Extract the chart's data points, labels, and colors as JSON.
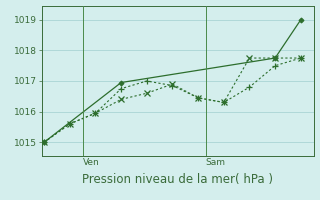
{
  "line1_x": [
    0,
    1,
    2,
    3,
    4,
    5,
    6,
    7,
    8,
    9,
    10
  ],
  "line1_y": [
    1015.0,
    1015.6,
    1015.95,
    1016.75,
    1017.0,
    1016.85,
    1016.45,
    1016.3,
    1016.8,
    1017.5,
    1017.75
  ],
  "line2_x": [
    0,
    1,
    2,
    3,
    4,
    5,
    6,
    7,
    8,
    9,
    10
  ],
  "line2_y": [
    1015.0,
    1015.6,
    1015.95,
    1016.4,
    1016.6,
    1016.9,
    1016.45,
    1016.3,
    1017.75,
    1017.75,
    1017.75
  ],
  "line3_x": [
    0,
    3,
    9,
    10
  ],
  "line3_y": [
    1015.0,
    1016.95,
    1017.75,
    1019.0
  ],
  "ylim": [
    1014.55,
    1019.45
  ],
  "yticks": [
    1015,
    1016,
    1017,
    1018,
    1019
  ],
  "xlim": [
    -0.1,
    10.5
  ],
  "ven_x": 1.5,
  "sam_x": 6.3,
  "n_grid_x": 10,
  "line_color": "#2d6e2d",
  "bg_color": "#d4eeed",
  "grid_color": "#aad4d4",
  "axis_color": "#3a6b3a",
  "xlabel": "Pression niveau de la mer( hPa )",
  "xlabel_fontsize": 8.5
}
